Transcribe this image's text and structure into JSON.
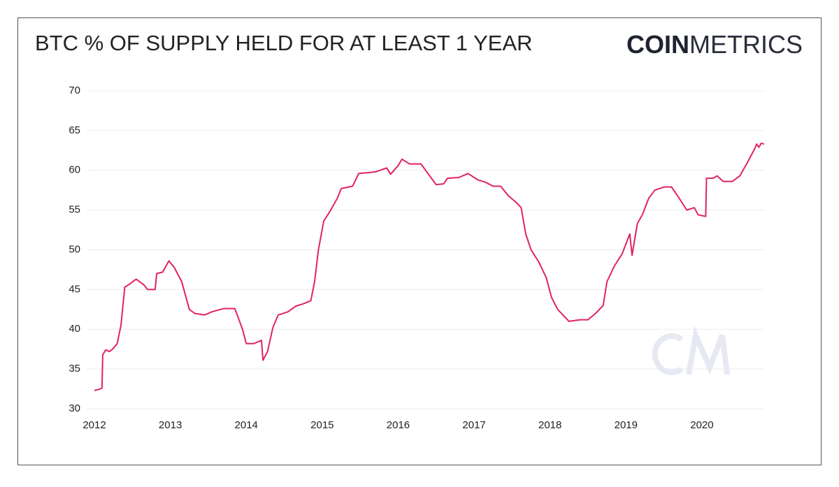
{
  "chart_data": {
    "type": "line",
    "title": "BTC % OF SUPPLY HELD FOR AT LEAST 1 YEAR",
    "brand": {
      "bold": "COIN",
      "light": "METRICS"
    },
    "x": [
      2012.0,
      2012.05,
      2012.1,
      2012.11,
      2012.15,
      2012.2,
      2012.25,
      2012.3,
      2012.35,
      2012.4,
      2012.45,
      2012.55,
      2012.65,
      2012.7,
      2012.8,
      2012.82,
      2012.9,
      2012.98,
      2013.05,
      2013.15,
      2013.25,
      2013.32,
      2013.45,
      2013.55,
      2013.7,
      2013.85,
      2013.95,
      2014.0,
      2014.1,
      2014.2,
      2014.22,
      2014.28,
      2014.35,
      2014.42,
      2014.55,
      2014.65,
      2014.75,
      2014.85,
      2014.9,
      2014.95,
      2015.02,
      2015.1,
      2015.2,
      2015.25,
      2015.4,
      2015.48,
      2015.6,
      2015.7,
      2015.85,
      2015.9,
      2016.0,
      2016.05,
      2016.15,
      2016.3,
      2016.4,
      2016.5,
      2016.6,
      2016.65,
      2016.8,
      2016.92,
      2017.05,
      2017.15,
      2017.25,
      2017.35,
      2017.45,
      2017.55,
      2017.62,
      2017.68,
      2017.75,
      2017.85,
      2017.95,
      2018.02,
      2018.1,
      2018.2,
      2018.25,
      2018.4,
      2018.5,
      2018.6,
      2018.7,
      2018.75,
      2018.85,
      2018.95,
      2019.05,
      2019.08,
      2019.15,
      2019.22,
      2019.3,
      2019.38,
      2019.5,
      2019.6,
      2019.7,
      2019.8,
      2019.9,
      2019.95,
      2020.05,
      2020.06,
      2020.15,
      2020.2,
      2020.28,
      2020.4,
      2020.5,
      2020.6,
      2020.7,
      2020.72,
      2020.75,
      2020.78,
      2020.82
    ],
    "series": [
      {
        "color": "#e0245e",
        "values": [
          32.3,
          32.4,
          32.6,
          36.8,
          37.4,
          37.2,
          37.6,
          38.2,
          40.5,
          45.3,
          45.6,
          46.3,
          45.6,
          45.0,
          45.0,
          47.0,
          47.2,
          48.6,
          47.8,
          46.0,
          42.5,
          42.0,
          41.8,
          42.2,
          42.6,
          42.6,
          40.0,
          38.2,
          38.2,
          38.6,
          36.1,
          37.2,
          40.2,
          41.8,
          42.2,
          42.9,
          43.2,
          43.6,
          46.0,
          50.0,
          53.6,
          54.8,
          56.5,
          57.7,
          58.0,
          59.6,
          59.7,
          59.8,
          60.3,
          59.5,
          60.6,
          61.4,
          60.8,
          60.8,
          59.5,
          58.2,
          58.3,
          59.0,
          59.1,
          59.6,
          58.8,
          58.5,
          58.0,
          58.0,
          56.8,
          56.0,
          55.3,
          52.0,
          50.0,
          48.5,
          46.5,
          44.0,
          42.5,
          41.5,
          41.0,
          41.2,
          41.2,
          42.0,
          43.0,
          46.0,
          48.0,
          49.5,
          52.0,
          49.3,
          53.3,
          54.5,
          56.5,
          57.5,
          57.9,
          57.9,
          56.5,
          55.0,
          55.3,
          54.4,
          54.2,
          59.0,
          59.0,
          59.3,
          58.6,
          58.6,
          59.3,
          61.0,
          62.8,
          63.3,
          62.9,
          63.4,
          63.3
        ]
      }
    ],
    "xlim": [
      2012,
      2020.82
    ],
    "xticks": [
      2012,
      2013,
      2014,
      2015,
      2016,
      2017,
      2018,
      2019,
      2020
    ],
    "ylim": [
      30,
      70
    ],
    "yticks": [
      30,
      35,
      40,
      45,
      50,
      55,
      60,
      65,
      70
    ],
    "grid": true
  }
}
